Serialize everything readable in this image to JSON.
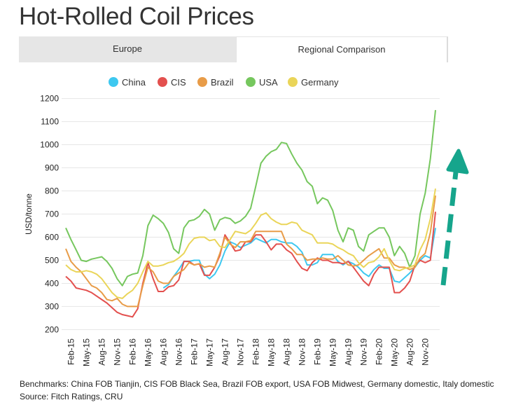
{
  "title": "Hot-Rolled Coil Prices",
  "tabs": [
    {
      "label": "Europe",
      "active": false
    },
    {
      "label": "Regional Comparison",
      "active": true
    }
  ],
  "chart_data": {
    "type": "line",
    "ylabel": "USD/tonne",
    "ylim": [
      180,
      1220
    ],
    "yticks": [
      200,
      300,
      400,
      500,
      600,
      700,
      800,
      900,
      1000,
      1100,
      1200
    ],
    "x": [
      "Jan-15",
      "Feb-15",
      "Mar-15",
      "Apr-15",
      "May-15",
      "Jun-15",
      "Jul-15",
      "Aug-15",
      "Sep-15",
      "Oct-15",
      "Nov-15",
      "Dec-15",
      "Jan-16",
      "Feb-16",
      "Mar-16",
      "Apr-16",
      "May-16",
      "Jun-16",
      "Jul-16",
      "Aug-16",
      "Sep-16",
      "Oct-16",
      "Nov-16",
      "Dec-16",
      "Jan-17",
      "Feb-17",
      "Mar-17",
      "Apr-17",
      "May-17",
      "Jun-17",
      "Jul-17",
      "Aug-17",
      "Sep-17",
      "Oct-17",
      "Nov-17",
      "Dec-17",
      "Jan-18",
      "Feb-18",
      "Mar-18",
      "Apr-18",
      "May-18",
      "Jun-18",
      "Jul-18",
      "Aug-18",
      "Sep-18",
      "Oct-18",
      "Nov-18",
      "Dec-18",
      "Jan-19",
      "Feb-19",
      "Mar-19",
      "Apr-19",
      "May-19",
      "Jun-19",
      "Jul-19",
      "Aug-19",
      "Sep-19",
      "Oct-19",
      "Nov-19",
      "Dec-19",
      "Jan-20",
      "Feb-20",
      "Mar-20",
      "Apr-20",
      "May-20",
      "Jun-20",
      "Jul-20",
      "Aug-20",
      "Sep-20",
      "Oct-20",
      "Nov-20",
      "Dec-20",
      "Jan-21"
    ],
    "xtick_labels": [
      "Feb-15",
      "May-15",
      "Aug-15",
      "Nov-15",
      "Feb-16",
      "May-16",
      "Aug-16",
      "Nov-16",
      "Feb-17",
      "May-17",
      "Aug-17",
      "Nov-17",
      "Feb-18",
      "May-18",
      "Aug-18",
      "Nov-18",
      "Feb-19",
      "May-19",
      "Aug-19",
      "Nov-19",
      "Feb-20",
      "May-20",
      "Aug-20",
      "Nov-20"
    ],
    "legend_position": "top-center",
    "grid": "horizontal",
    "series": [
      {
        "name": "China",
        "color": "#3ec8f0",
        "values": [
          null,
          null,
          null,
          null,
          null,
          null,
          null,
          null,
          null,
          null,
          null,
          null,
          null,
          null,
          null,
          null,
          null,
          null,
          null,
          380,
          395,
          430,
          460,
          495,
          495,
          500,
          500,
          440,
          420,
          440,
          480,
          540,
          580,
          570,
          555,
          565,
          575,
          595,
          585,
          575,
          590,
          590,
          580,
          575,
          575,
          560,
          535,
          480,
          480,
          490,
          525,
          525,
          525,
          495,
          480,
          495,
          485,
          470,
          445,
          430,
          460,
          480,
          465,
          465,
          410,
          405,
          425,
          445,
          470,
          500,
          520,
          510,
          640
        ]
      },
      {
        "name": "CIS",
        "color": "#e3504e",
        "values": [
          430,
          410,
          380,
          375,
          370,
          360,
          345,
          330,
          315,
          295,
          275,
          265,
          260,
          255,
          290,
          400,
          490,
          420,
          365,
          365,
          385,
          390,
          415,
          495,
          495,
          480,
          485,
          435,
          435,
          470,
          520,
          610,
          575,
          540,
          545,
          580,
          580,
          610,
          610,
          580,
          545,
          570,
          570,
          545,
          530,
          495,
          465,
          455,
          490,
          510,
          500,
          500,
          490,
          490,
          485,
          495,
          470,
          440,
          410,
          390,
          440,
          470,
          470,
          470,
          360,
          360,
          380,
          410,
          480,
          500,
          490,
          500,
          710
        ]
      },
      {
        "name": "Brazil",
        "color": "#e89c48",
        "values": [
          550,
          495,
          470,
          450,
          420,
          390,
          380,
          360,
          330,
          325,
          335,
          310,
          300,
          300,
          300,
          390,
          470,
          450,
          410,
          400,
          400,
          430,
          445,
          460,
          490,
          480,
          485,
          470,
          475,
          470,
          530,
          600,
          570,
          555,
          580,
          580,
          585,
          625,
          625,
          625,
          625,
          625,
          625,
          570,
          550,
          525,
          525,
          500,
          505,
          505,
          510,
          505,
          505,
          520,
          500,
          480,
          475,
          480,
          500,
          520,
          535,
          550,
          510,
          510,
          480,
          470,
          470,
          460,
          470,
          510,
          530,
          620,
          780
        ]
      },
      {
        "name": "USA",
        "color": "#76c75e",
        "values": [
          640,
          590,
          545,
          500,
          495,
          505,
          510,
          515,
          495,
          465,
          420,
          390,
          430,
          440,
          445,
          520,
          650,
          695,
          680,
          660,
          620,
          550,
          530,
          640,
          670,
          675,
          690,
          720,
          700,
          630,
          675,
          685,
          680,
          660,
          670,
          690,
          725,
          820,
          920,
          950,
          970,
          980,
          1010,
          1005,
          960,
          920,
          890,
          840,
          820,
          745,
          770,
          760,
          715,
          630,
          580,
          640,
          630,
          560,
          540,
          610,
          625,
          640,
          640,
          600,
          520,
          560,
          530,
          470,
          520,
          700,
          790,
          940,
          1150
        ]
      },
      {
        "name": "Germany",
        "color": "#ead559",
        "values": [
          480,
          460,
          450,
          450,
          455,
          450,
          440,
          420,
          390,
          360,
          340,
          335,
          355,
          370,
          400,
          450,
          495,
          475,
          475,
          480,
          490,
          495,
          510,
          530,
          570,
          595,
          600,
          600,
          585,
          590,
          560,
          555,
          590,
          625,
          620,
          615,
          630,
          660,
          695,
          705,
          680,
          665,
          655,
          655,
          665,
          660,
          630,
          620,
          610,
          575,
          575,
          575,
          570,
          555,
          545,
          530,
          520,
          490,
          470,
          490,
          495,
          515,
          550,
          500,
          460,
          455,
          465,
          470,
          480,
          545,
          590,
          680,
          810
        ]
      }
    ]
  },
  "footer": {
    "benchmarks": "Benchmarks: China FOB Tianjin, CIS FOB Black Sea, Brazil FOB export, USA FOB Midwest, Germany domestic, Italy domestic",
    "source": "Source: Fitch Ratings, CRU"
  }
}
